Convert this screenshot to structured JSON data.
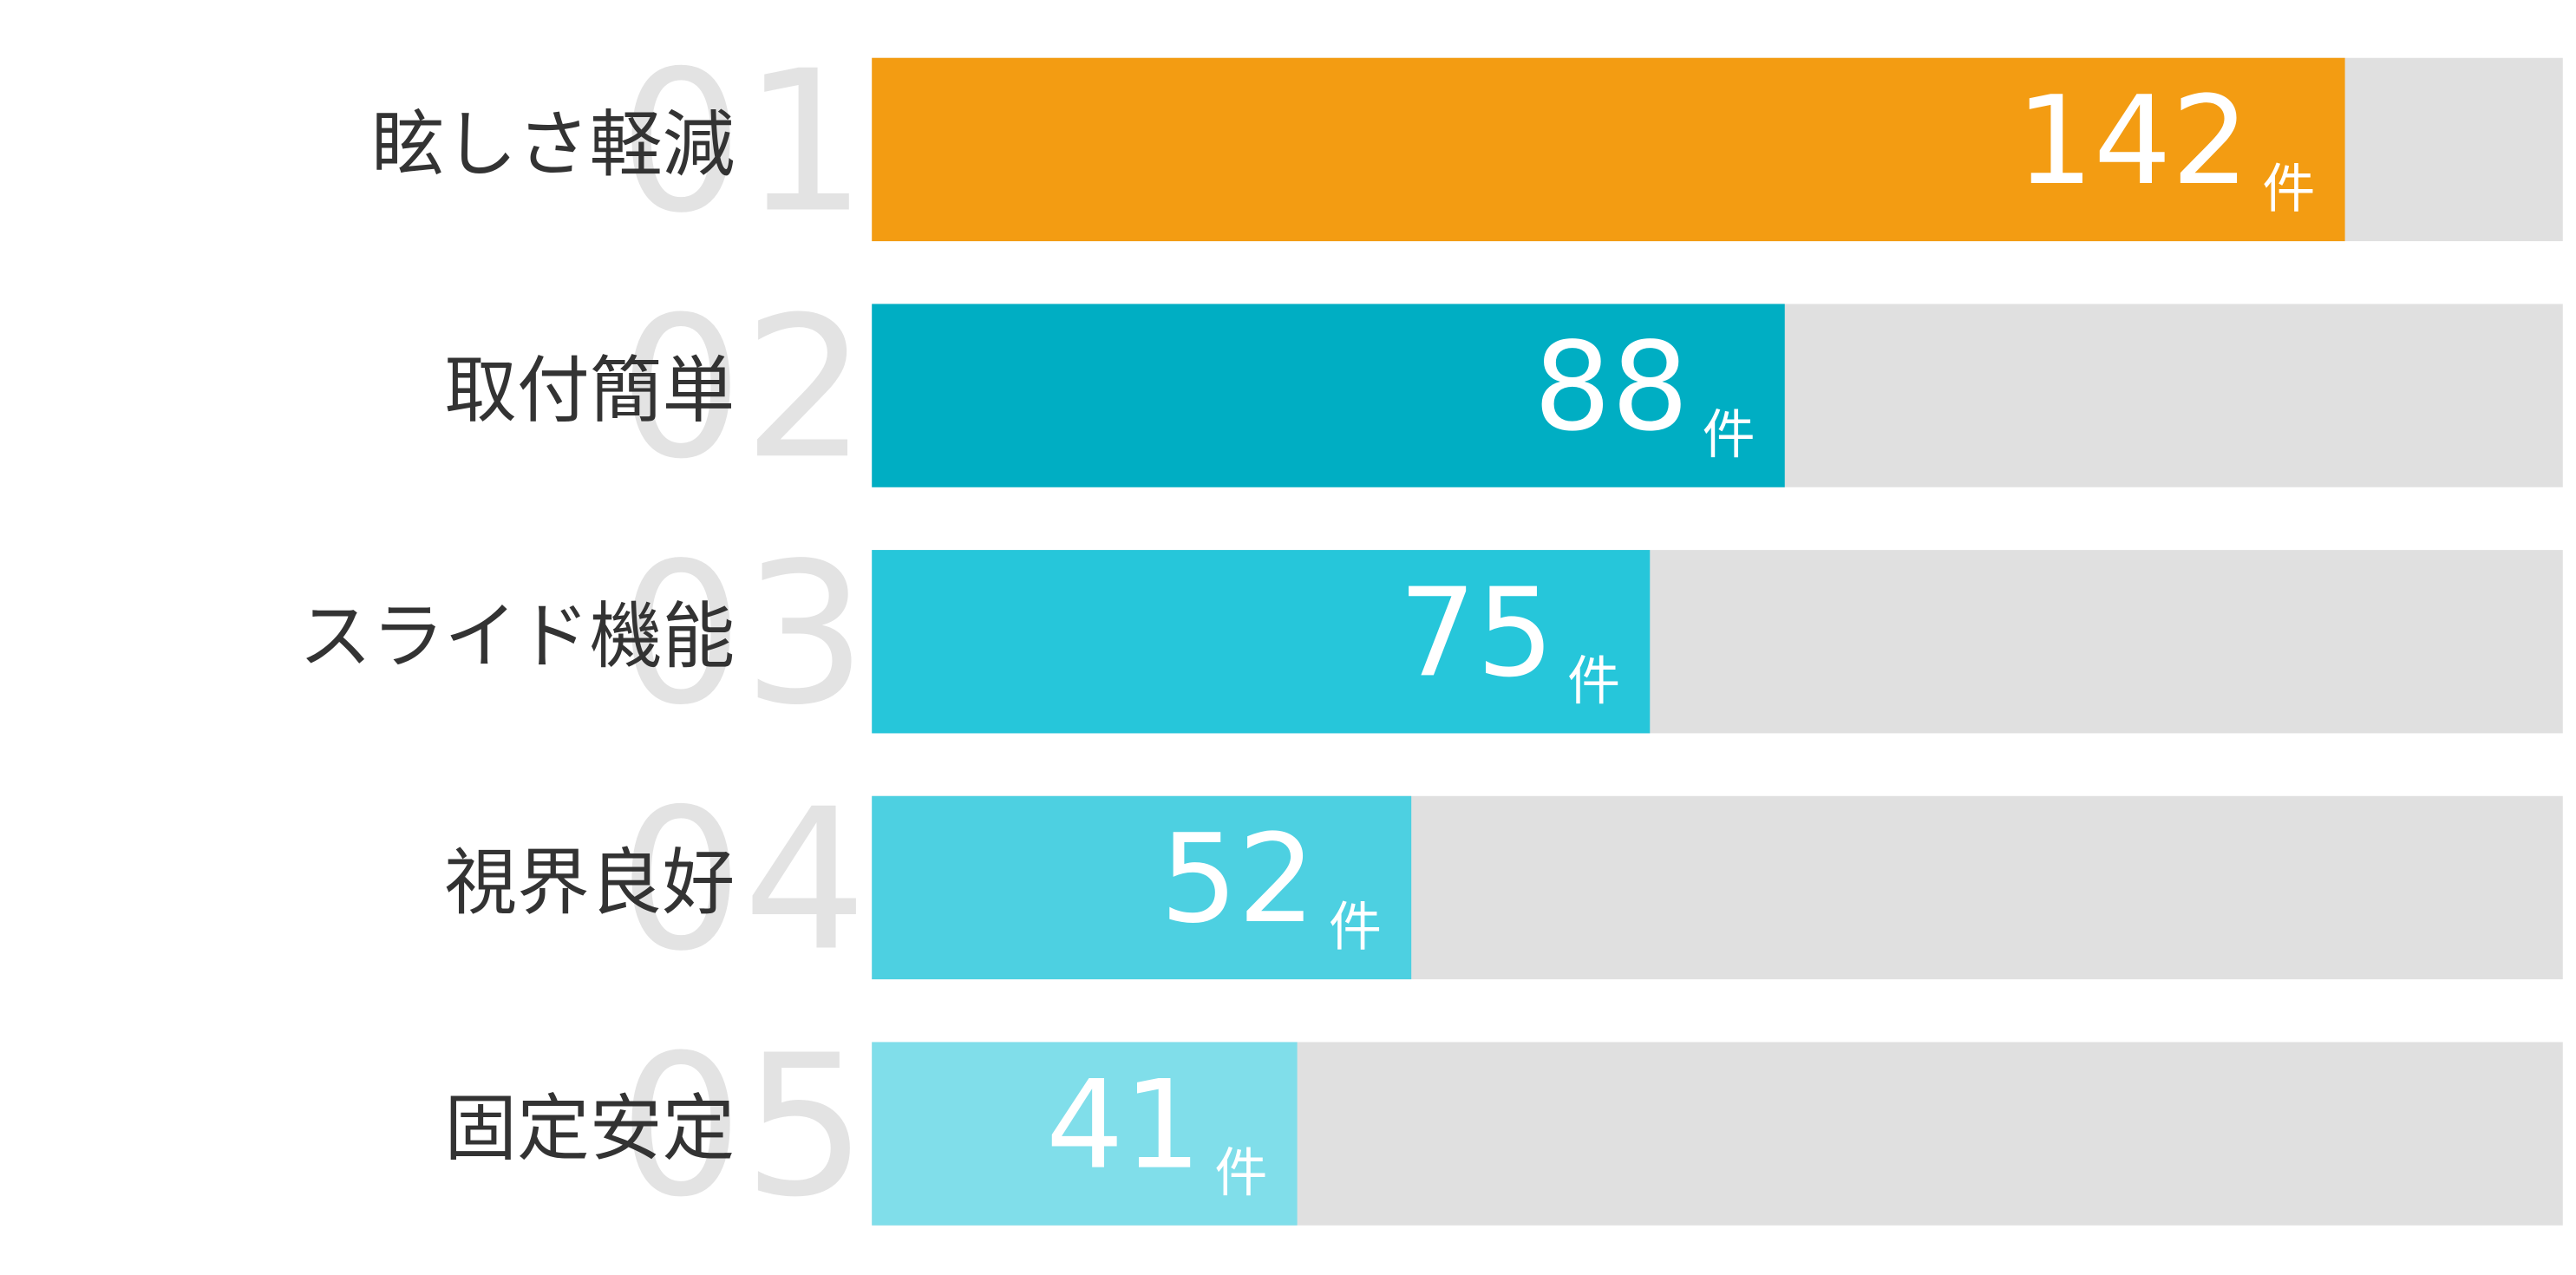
{
  "chart_data": {
    "type": "bar",
    "orientation": "horizontal",
    "categories": [
      "眩しさ軽減",
      "取付簡単",
      "スライド機能",
      "視界良好",
      "固定安定"
    ],
    "ranks": [
      "01",
      "02",
      "03",
      "04",
      "05"
    ],
    "values": [
      142,
      88,
      75,
      52,
      41
    ],
    "unit": "件",
    "colors": [
      "#f39c12",
      "#00aec3",
      "#26c6da",
      "#4dd0e1",
      "#80deea"
    ],
    "track_color": "#e0e0e0",
    "xlim": [
      0,
      163
    ]
  }
}
